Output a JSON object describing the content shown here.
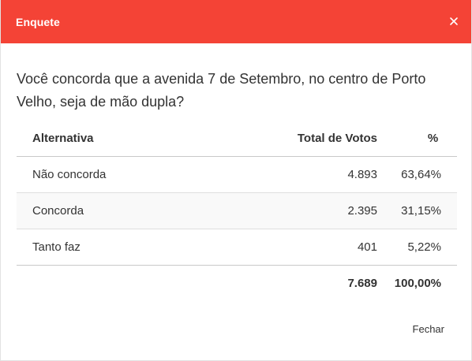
{
  "modal": {
    "title": "Enquete",
    "close_icon": "close-icon",
    "question": "Você concorda que a avenida 7 de Setembro, no centro de Porto Velho, seja de mão dupla?",
    "table": {
      "headers": {
        "alternative": "Alternativa",
        "votes": "Total de Votos",
        "percent": "%"
      },
      "rows": [
        {
          "alternative": "Não concorda",
          "votes": "4.893",
          "percent": "63,64%"
        },
        {
          "alternative": "Concorda",
          "votes": "2.395",
          "percent": "31,15%"
        },
        {
          "alternative": "Tanto faz",
          "votes": "401",
          "percent": "5,22%"
        }
      ],
      "totals": {
        "votes": "7.689",
        "percent": "100,00%"
      }
    },
    "footer_button": "Fechar",
    "colors": {
      "header": "#f44336",
      "header_text": "#ffffff"
    }
  }
}
